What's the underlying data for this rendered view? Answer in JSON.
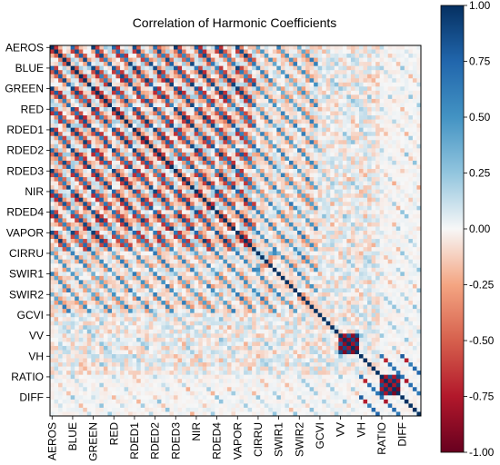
{
  "chart_data": {
    "type": "heatmap",
    "title": "Correlation of Harmonic Coefficients",
    "xlabel": "",
    "ylabel": "",
    "bands": [
      "AEROS",
      "BLUE",
      "GREEN",
      "RED",
      "RDED1",
      "RDED2",
      "RDED3",
      "NIR",
      "RDED4",
      "VAPOR",
      "CIRRU",
      "SWIR1",
      "SWIR2",
      "GCVI",
      "VV",
      "VH",
      "RATIO",
      "DIFF"
    ],
    "coefficients_per_band": 5,
    "matrix_size": 90,
    "x_tick_labels": [
      "AEROS",
      "BLUE",
      "GREEN",
      "RED",
      "RDED1",
      "RDED2",
      "RDED3",
      "NIR",
      "RDED4",
      "VAPOR",
      "CIRRU",
      "SWIR1",
      "SWIR2",
      "GCVI",
      "VV",
      "VH",
      "RATIO",
      "DIFF"
    ],
    "y_tick_labels": [
      "AEROS",
      "BLUE",
      "GREEN",
      "RED",
      "RDED1",
      "RDED2",
      "RDED3",
      "NIR",
      "RDED4",
      "VAPOR",
      "CIRRU",
      "SWIR1",
      "SWIR2",
      "GCVI",
      "VV",
      "VH",
      "RATIO",
      "DIFF"
    ],
    "diagonal_value": 1.0,
    "value_range": [
      -1.0,
      1.0
    ],
    "colormap": "RdBu",
    "colors": {
      "neg": "#67001f",
      "zero": "#f7f7f7",
      "pos": "#053061"
    },
    "colorbar": {
      "ticks": [
        1.0,
        0.75,
        0.5,
        0.25,
        0.0,
        -0.25,
        -0.5,
        -0.75,
        -1.0
      ],
      "tick_labels": [
        "1.00",
        "0.75",
        "0.50",
        "0.25",
        "0.00",
        "-0.25",
        "-0.50",
        "-0.75",
        "-1.00"
      ],
      "placement": "right"
    },
    "grid": false
  }
}
